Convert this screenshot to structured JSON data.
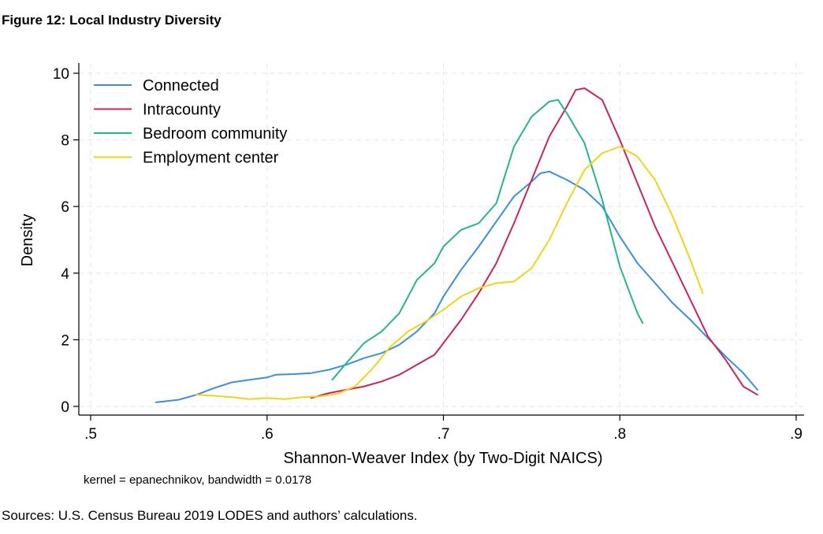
{
  "figure_title": "Figure 12: Local Industry Diversity",
  "source_note": "Sources: U.S. Census Bureau 2019 LODES and authors’ calculations.",
  "chart_data": {
    "type": "line",
    "title": "Figure 12: Local Industry Diversity",
    "xlabel": "Shannon-Weaver Index (by Two-Digit NAICS)",
    "ylabel": "Density",
    "note": "kernel = epanechnikov, bandwidth = 0.0178",
    "xlim": [
      0.5,
      0.9
    ],
    "ylim": [
      0,
      10
    ],
    "x_ticks": [
      0.5,
      0.6,
      0.7,
      0.8,
      0.9
    ],
    "x_tick_labels": [
      ".5",
      ".6",
      ".7",
      ".8",
      ".9"
    ],
    "y_ticks": [
      0,
      2,
      4,
      6,
      8,
      10
    ],
    "y_tick_labels": [
      "0",
      "2",
      "4",
      "6",
      "8",
      "10"
    ],
    "grid": true,
    "legend_position": "top-left",
    "series": [
      {
        "name": "Connected",
        "color": "#3c8fdc",
        "points": [
          [
            0.537,
            0.12
          ],
          [
            0.55,
            0.2
          ],
          [
            0.56,
            0.35
          ],
          [
            0.57,
            0.55
          ],
          [
            0.58,
            0.72
          ],
          [
            0.59,
            0.8
          ],
          [
            0.6,
            0.87
          ],
          [
            0.605,
            0.95
          ],
          [
            0.615,
            0.97
          ],
          [
            0.625,
            1.0
          ],
          [
            0.635,
            1.1
          ],
          [
            0.645,
            1.25
          ],
          [
            0.655,
            1.45
          ],
          [
            0.665,
            1.6
          ],
          [
            0.675,
            1.85
          ],
          [
            0.685,
            2.25
          ],
          [
            0.695,
            2.8
          ],
          [
            0.7,
            3.3
          ],
          [
            0.71,
            4.1
          ],
          [
            0.72,
            4.8
          ],
          [
            0.73,
            5.55
          ],
          [
            0.74,
            6.3
          ],
          [
            0.75,
            6.75
          ],
          [
            0.755,
            7.0
          ],
          [
            0.76,
            7.05
          ],
          [
            0.77,
            6.8
          ],
          [
            0.78,
            6.5
          ],
          [
            0.79,
            6.0
          ],
          [
            0.8,
            5.1
          ],
          [
            0.81,
            4.3
          ],
          [
            0.82,
            3.7
          ],
          [
            0.83,
            3.1
          ],
          [
            0.84,
            2.6
          ],
          [
            0.85,
            2.05
          ],
          [
            0.86,
            1.5
          ],
          [
            0.87,
            1.0
          ],
          [
            0.878,
            0.5
          ]
        ]
      },
      {
        "name": "Intracounty",
        "color": "#c8255a",
        "points": [
          [
            0.625,
            0.25
          ],
          [
            0.635,
            0.4
          ],
          [
            0.645,
            0.5
          ],
          [
            0.655,
            0.6
          ],
          [
            0.665,
            0.75
          ],
          [
            0.675,
            0.95
          ],
          [
            0.685,
            1.25
          ],
          [
            0.695,
            1.55
          ],
          [
            0.7,
            1.9
          ],
          [
            0.71,
            2.6
          ],
          [
            0.72,
            3.4
          ],
          [
            0.73,
            4.3
          ],
          [
            0.74,
            5.5
          ],
          [
            0.75,
            6.8
          ],
          [
            0.76,
            8.1
          ],
          [
            0.77,
            9.0
          ],
          [
            0.775,
            9.5
          ],
          [
            0.78,
            9.55
          ],
          [
            0.79,
            9.2
          ],
          [
            0.8,
            8.0
          ],
          [
            0.81,
            6.7
          ],
          [
            0.82,
            5.4
          ],
          [
            0.83,
            4.3
          ],
          [
            0.84,
            3.2
          ],
          [
            0.85,
            2.1
          ],
          [
            0.86,
            1.4
          ],
          [
            0.87,
            0.6
          ],
          [
            0.878,
            0.35
          ]
        ]
      },
      {
        "name": "Bedroom community",
        "color": "#27b48b",
        "points": [
          [
            0.637,
            0.8
          ],
          [
            0.645,
            1.3
          ],
          [
            0.655,
            1.9
          ],
          [
            0.665,
            2.25
          ],
          [
            0.675,
            2.8
          ],
          [
            0.685,
            3.8
          ],
          [
            0.695,
            4.3
          ],
          [
            0.7,
            4.8
          ],
          [
            0.71,
            5.3
          ],
          [
            0.72,
            5.5
          ],
          [
            0.73,
            6.1
          ],
          [
            0.74,
            7.8
          ],
          [
            0.75,
            8.7
          ],
          [
            0.76,
            9.15
          ],
          [
            0.765,
            9.2
          ],
          [
            0.77,
            8.8
          ],
          [
            0.78,
            7.9
          ],
          [
            0.79,
            6.2
          ],
          [
            0.8,
            4.2
          ],
          [
            0.81,
            2.8
          ],
          [
            0.813,
            2.5
          ]
        ]
      },
      {
        "name": "Employment center",
        "color": "#f2d21a",
        "points": [
          [
            0.56,
            0.35
          ],
          [
            0.57,
            0.32
          ],
          [
            0.58,
            0.28
          ],
          [
            0.59,
            0.22
          ],
          [
            0.6,
            0.25
          ],
          [
            0.61,
            0.22
          ],
          [
            0.62,
            0.28
          ],
          [
            0.63,
            0.3
          ],
          [
            0.64,
            0.38
          ],
          [
            0.65,
            0.6
          ],
          [
            0.66,
            1.15
          ],
          [
            0.67,
            1.8
          ],
          [
            0.68,
            2.25
          ],
          [
            0.69,
            2.55
          ],
          [
            0.7,
            2.9
          ],
          [
            0.71,
            3.3
          ],
          [
            0.72,
            3.55
          ],
          [
            0.73,
            3.7
          ],
          [
            0.74,
            3.75
          ],
          [
            0.75,
            4.15
          ],
          [
            0.76,
            5.0
          ],
          [
            0.77,
            6.1
          ],
          [
            0.78,
            7.1
          ],
          [
            0.79,
            7.6
          ],
          [
            0.8,
            7.8
          ],
          [
            0.81,
            7.5
          ],
          [
            0.82,
            6.8
          ],
          [
            0.83,
            5.7
          ],
          [
            0.84,
            4.4
          ],
          [
            0.847,
            3.4
          ]
        ]
      }
    ]
  }
}
